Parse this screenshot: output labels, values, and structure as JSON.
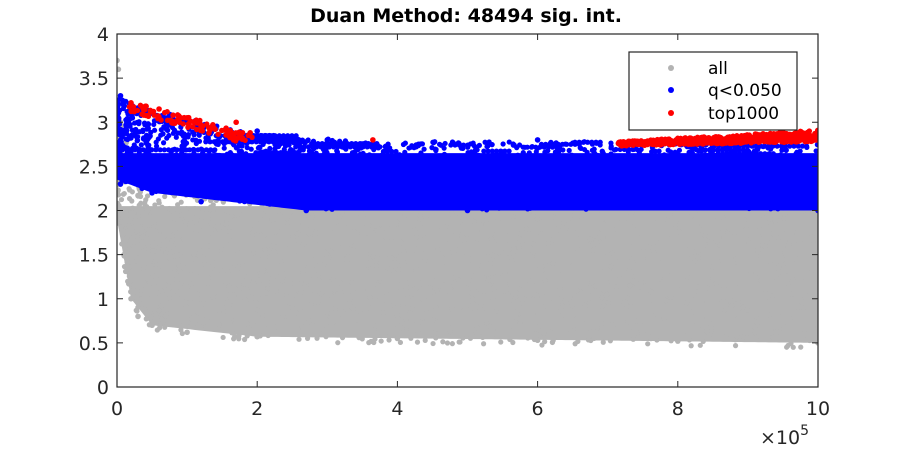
{
  "chart_data": {
    "type": "scatter",
    "title": "Duan Method: 48494 sig. int.",
    "xlabel": "",
    "ylabel": "",
    "x_exponent_label": "×10",
    "x_exponent_power": "5",
    "xlim": [
      0,
      1000000
    ],
    "ylim": [
      0,
      4
    ],
    "x_tick_values": [
      0,
      200000,
      400000,
      600000,
      800000,
      1000000
    ],
    "x_tick_labels": [
      "0",
      "2",
      "4",
      "6",
      "8",
      "10"
    ],
    "y_tick_values": [
      0,
      0.5,
      1,
      1.5,
      2,
      2.5,
      3,
      3.5,
      4
    ],
    "y_tick_labels": [
      "0",
      "0.5",
      "1",
      "1.5",
      "2",
      "2.5",
      "3",
      "3.5",
      "4"
    ],
    "grid": false,
    "legend_position": "top-right",
    "series": [
      {
        "name": "all",
        "color": "#b3b3b3",
        "description_points": [
          [
            0,
            3.7
          ],
          [
            2000,
            3.6
          ],
          [
            5000,
            3.0
          ],
          [
            10000,
            2.6
          ],
          [
            20000,
            2.4
          ],
          [
            40000,
            2.3
          ],
          [
            100000,
            2.25
          ],
          [
            200000,
            2.15
          ],
          [
            300000,
            2.05
          ],
          [
            500000,
            2.0
          ],
          [
            800000,
            2.0
          ],
          [
            1000000,
            2.0
          ],
          [
            0,
            1.9
          ],
          [
            10000,
            1.5
          ],
          [
            20000,
            1.0
          ],
          [
            30000,
            0.8
          ],
          [
            50000,
            0.7
          ],
          [
            100000,
            0.62
          ],
          [
            200000,
            0.57
          ],
          [
            400000,
            0.55
          ],
          [
            600000,
            0.53
          ],
          [
            800000,
            0.52
          ],
          [
            1000000,
            0.5
          ]
        ]
      },
      {
        "name": "q<0.050",
        "color": "#0000ff",
        "description_points": [
          [
            5000,
            3.3
          ],
          [
            20000,
            3.2
          ],
          [
            100000,
            3.0
          ],
          [
            200000,
            2.9
          ],
          [
            300000,
            2.8
          ],
          [
            430000,
            2.75
          ],
          [
            600000,
            2.8
          ],
          [
            800000,
            2.8
          ],
          [
            1000000,
            2.8
          ],
          [
            5000,
            2.3
          ],
          [
            50000,
            2.2
          ],
          [
            120000,
            2.1
          ],
          [
            270000,
            2.0
          ],
          [
            500000,
            2.0
          ],
          [
            1000000,
            2.0
          ]
        ]
      },
      {
        "name": "top1000",
        "color": "#ff0000",
        "description_points": [
          [
            20000,
            3.22
          ],
          [
            40000,
            3.18
          ],
          [
            60000,
            3.15
          ],
          [
            80000,
            3.08
          ],
          [
            100000,
            3.05
          ],
          [
            120000,
            2.95
          ],
          [
            140000,
            2.92
          ],
          [
            170000,
            3.0
          ],
          [
            190000,
            2.88
          ],
          [
            365000,
            2.8
          ],
          [
            720000,
            2.74
          ],
          [
            800000,
            2.78
          ],
          [
            900000,
            2.8
          ],
          [
            1000000,
            2.85
          ]
        ]
      }
    ]
  }
}
